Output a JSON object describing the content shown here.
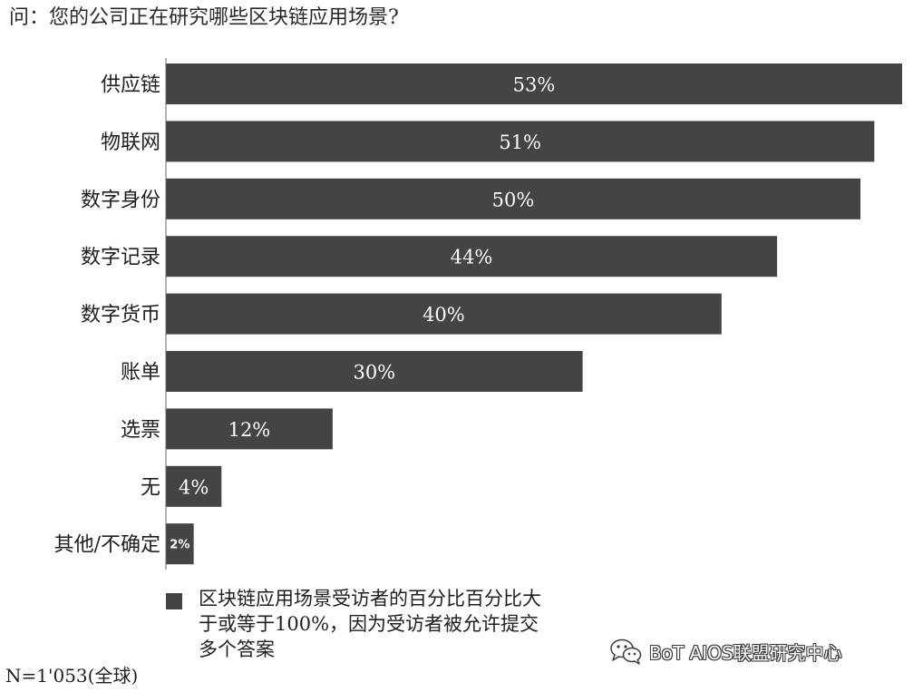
{
  "question": "问：您的公司正在研究哪些区块链应用场景?",
  "chart_data": {
    "type": "bar",
    "orientation": "horizontal",
    "categories": [
      "供应链",
      "物联网",
      "数字身份",
      "数字记录",
      "数字货币",
      "账单",
      "选票",
      "无",
      "其他/不确定"
    ],
    "values": [
      53,
      51,
      50,
      44,
      40,
      30,
      12,
      4,
      2
    ],
    "value_labels": [
      "53%",
      "51%",
      "50%",
      "44%",
      "40%",
      "30%",
      "12%",
      "4%",
      "2%"
    ],
    "unit": "%",
    "xlim": [
      0,
      53
    ],
    "bar_color": "#444444",
    "grid": false
  },
  "legend": {
    "text": "区块链应用场景受访者的百分比百分比大于或等于100%，因为受访者被允许提交多个答案",
    "swatch_color": "#444444"
  },
  "sample_note": "N=1'053(全球)",
  "watermark": {
    "icon": "wechat-icon",
    "text": "BoT AIOS联盟研究中心"
  }
}
